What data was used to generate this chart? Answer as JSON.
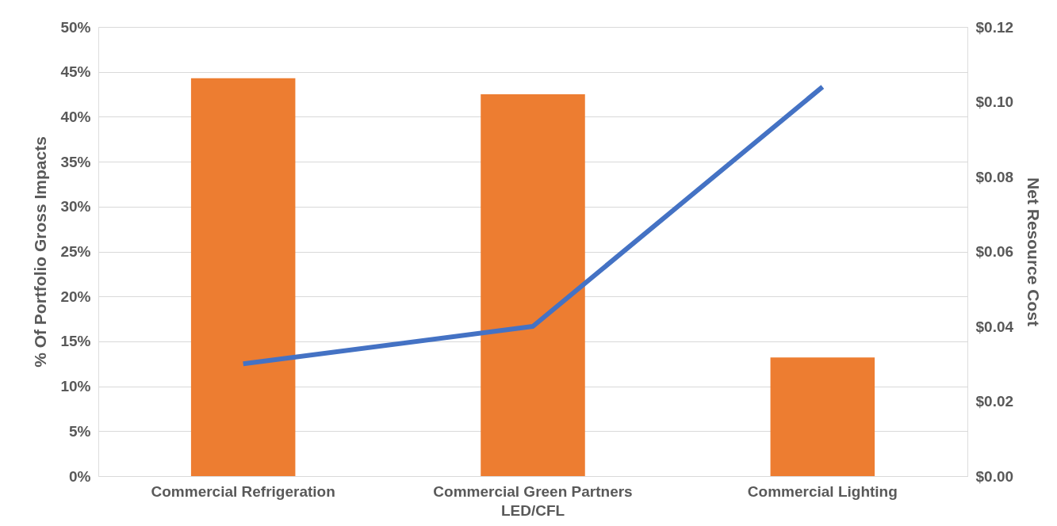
{
  "chart_data": {
    "type": "bar",
    "categories": [
      "Commercial Refrigeration",
      "Commercial Green Partners\nLED/CFL",
      "Commercial Lighting"
    ],
    "ylabel": "% Of Portfolio Gross Impacts",
    "y2label": "Net Resource Cost",
    "series": [
      {
        "color": "#ed7d31",
        "values": [
          44.3,
          42.5,
          13.2
        ]
      },
      {
        "type": "line",
        "axis": "y2",
        "color": "#4472c4",
        "values": [
          0.03,
          0.04,
          0.104
        ]
      }
    ],
    "ylim": [
      0,
      50
    ],
    "yticks": [
      {
        "value": 0,
        "label": "0%"
      },
      {
        "value": 5,
        "label": "5%"
      },
      {
        "value": 10,
        "label": "10%"
      },
      {
        "value": 15,
        "label": "15%"
      },
      {
        "value": 20,
        "label": "20%"
      },
      {
        "value": 25,
        "label": "25%"
      },
      {
        "value": 30,
        "label": "30%"
      },
      {
        "value": 35,
        "label": "35%"
      },
      {
        "value": 40,
        "label": "40%"
      },
      {
        "value": 45,
        "label": "45%"
      },
      {
        "value": 50,
        "label": "50%"
      }
    ],
    "y2lim": [
      0,
      0.12
    ],
    "y2ticks": [
      {
        "value": 0,
        "label": "$0.00"
      },
      {
        "value": 0.02,
        "label": "$0.02"
      },
      {
        "value": 0.04,
        "label": "$0.04"
      },
      {
        "value": 0.06,
        "label": "$0.06"
      },
      {
        "value": 0.08,
        "label": "$0.08"
      },
      {
        "value": 0.1,
        "label": "$0.10"
      },
      {
        "value": 0.12,
        "label": "$0.12"
      }
    ],
    "grid": "y",
    "marker": "none",
    "line_style": "solid"
  }
}
